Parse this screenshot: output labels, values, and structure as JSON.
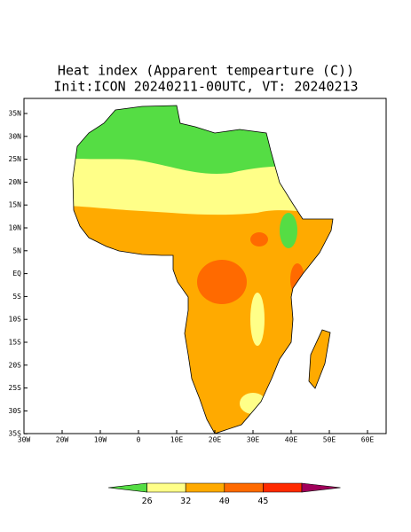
{
  "title": "Heat index (Apparent tempearture (C))",
  "subtitle": "Init:ICON 20240211-00UTC, VT: 20240213",
  "lat_labels": [
    "35N",
    "30N",
    "25N",
    "20N",
    "15N",
    "10N",
    "5N",
    "EQ",
    "5S",
    "10S",
    "15S",
    "20S",
    "25S",
    "30S",
    "35S"
  ],
  "lon_labels": [
    "30W",
    "20W",
    "10W",
    "0",
    "10E",
    "20E",
    "30E",
    "40E",
    "50E",
    "60E"
  ],
  "colorbar": {
    "levels": [
      26,
      32,
      40,
      45
    ],
    "colors": [
      "#55dd44",
      "#ffff88",
      "#ffaa00",
      "#ff6a00",
      "#ff2a00",
      "#a0005a"
    ]
  }
}
